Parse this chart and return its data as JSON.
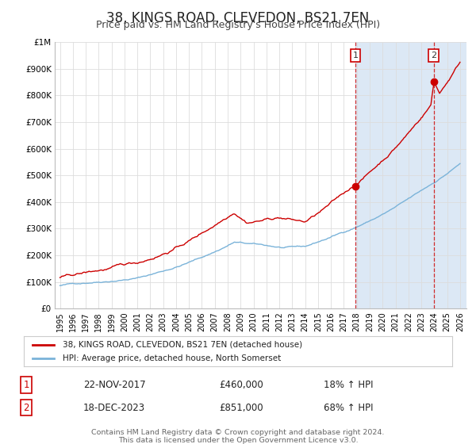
{
  "title": "38, KINGS ROAD, CLEVEDON, BS21 7EN",
  "subtitle": "Price paid vs. HM Land Registry's House Price Index (HPI)",
  "ylim": [
    0,
    1000000
  ],
  "yticks": [
    0,
    100000,
    200000,
    300000,
    400000,
    500000,
    600000,
    700000,
    800000,
    900000,
    1000000
  ],
  "ytick_labels": [
    "£0",
    "£100K",
    "£200K",
    "£300K",
    "£400K",
    "£500K",
    "£600K",
    "£700K",
    "£800K",
    "£900K",
    "£1M"
  ],
  "xlim_start": 1994.6,
  "xlim_end": 2026.5,
  "hpi_color": "#7ab3d9",
  "price_color": "#cc0000",
  "fig_bg_color": "#ffffff",
  "plot_bg_color": "#ffffff",
  "grid_color": "#dddddd",
  "shade_color": "#dce8f5",
  "marker1_date": 2017.897,
  "marker1_value": 460000,
  "marker1_label": "1",
  "marker1_date_str": "22-NOV-2017",
  "marker1_price_str": "£460,000",
  "marker1_hpi_str": "18% ↑ HPI",
  "marker2_date": 2023.964,
  "marker2_value": 851000,
  "marker2_label": "2",
  "marker2_date_str": "18-DEC-2023",
  "marker2_price_str": "£851,000",
  "marker2_hpi_str": "68% ↑ HPI",
  "legend_line1": "38, KINGS ROAD, CLEVEDON, BS21 7EN (detached house)",
  "legend_line2": "HPI: Average price, detached house, North Somerset",
  "footer_line1": "Contains HM Land Registry data © Crown copyright and database right 2024.",
  "footer_line2": "This data is licensed under the Open Government Licence v3.0.",
  "title_fontsize": 12,
  "subtitle_fontsize": 9
}
